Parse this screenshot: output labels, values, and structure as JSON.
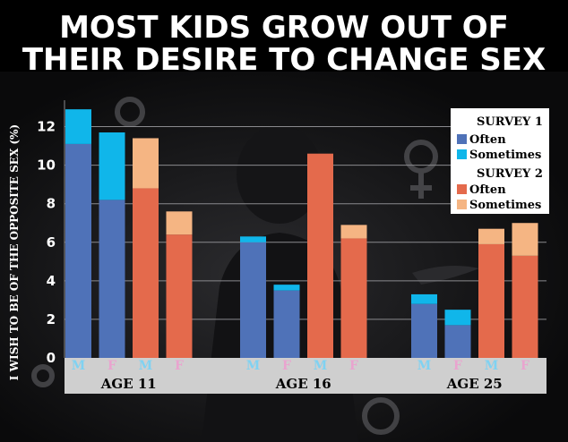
{
  "colors": {
    "survey1_often": "#4f72b8",
    "survey1_sometimes": "#10b6ea",
    "survey2_often": "#e46a4c",
    "survey2_sometimes": "#f5b583",
    "m_label": "#7fd2f2",
    "f_label": "#e9a4cf",
    "background": "#000000",
    "panel": "#1c1c1e"
  },
  "chart_data": {
    "type": "bar",
    "stacked": true,
    "title": "MOST KIDS GROW OUT OF THEIR DESIRE TO CHANGE SEX",
    "title_lines": [
      "MOST KIDS GROW OUT OF",
      "THEIR DESIRE TO CHANGE SEX"
    ],
    "ylabel": "I WISH TO BE OF THE OPPOSITE SEX (%)",
    "ylim": [
      0,
      13
    ],
    "yticks": [
      0,
      2,
      4,
      6,
      8,
      10,
      12
    ],
    "grid": true,
    "legend": {
      "placement": "top-right",
      "groups": [
        {
          "title": "SURVEY 1",
          "entries": [
            {
              "label": "Often",
              "color": "#4f72b8"
            },
            {
              "label": "Sometimes",
              "color": "#10b6ea"
            }
          ]
        },
        {
          "title": "SURVEY 2",
          "entries": [
            {
              "label": "Often",
              "color": "#e46a4c"
            },
            {
              "label": "Sometimes",
              "color": "#f5b583"
            }
          ]
        }
      ]
    },
    "groups": [
      "AGE 11",
      "AGE 16",
      "AGE 25"
    ],
    "bars": [
      {
        "group": "AGE 11",
        "sex": "M",
        "survey": "SURVEY 1",
        "often": 11.1,
        "sometimes": 1.8
      },
      {
        "group": "AGE 11",
        "sex": "F",
        "survey": "SURVEY 1",
        "often": 8.2,
        "sometimes": 3.5
      },
      {
        "group": "AGE 11",
        "sex": "M",
        "survey": "SURVEY 2",
        "often": 8.8,
        "sometimes": 2.6
      },
      {
        "group": "AGE 11",
        "sex": "F",
        "survey": "SURVEY 2",
        "often": 6.4,
        "sometimes": 1.2
      },
      {
        "group": "AGE 16",
        "sex": "M",
        "survey": "SURVEY 1",
        "often": 6.0,
        "sometimes": 0.3
      },
      {
        "group": "AGE 16",
        "sex": "F",
        "survey": "SURVEY 1",
        "often": 3.5,
        "sometimes": 0.3
      },
      {
        "group": "AGE 16",
        "sex": "M",
        "survey": "SURVEY 2",
        "often": 10.6,
        "sometimes": 0.0
      },
      {
        "group": "AGE 16",
        "sex": "F",
        "survey": "SURVEY 2",
        "often": 6.2,
        "sometimes": 0.7
      },
      {
        "group": "AGE 25",
        "sex": "M",
        "survey": "SURVEY 1",
        "often": 2.8,
        "sometimes": 0.5
      },
      {
        "group": "AGE 25",
        "sex": "F",
        "survey": "SURVEY 1",
        "often": 1.7,
        "sometimes": 0.8
      },
      {
        "group": "AGE 25",
        "sex": "M",
        "survey": "SURVEY 2",
        "often": 5.9,
        "sometimes": 0.8
      },
      {
        "group": "AGE 25",
        "sex": "F",
        "survey": "SURVEY 2",
        "often": 5.3,
        "sometimes": 1.7
      }
    ]
  }
}
